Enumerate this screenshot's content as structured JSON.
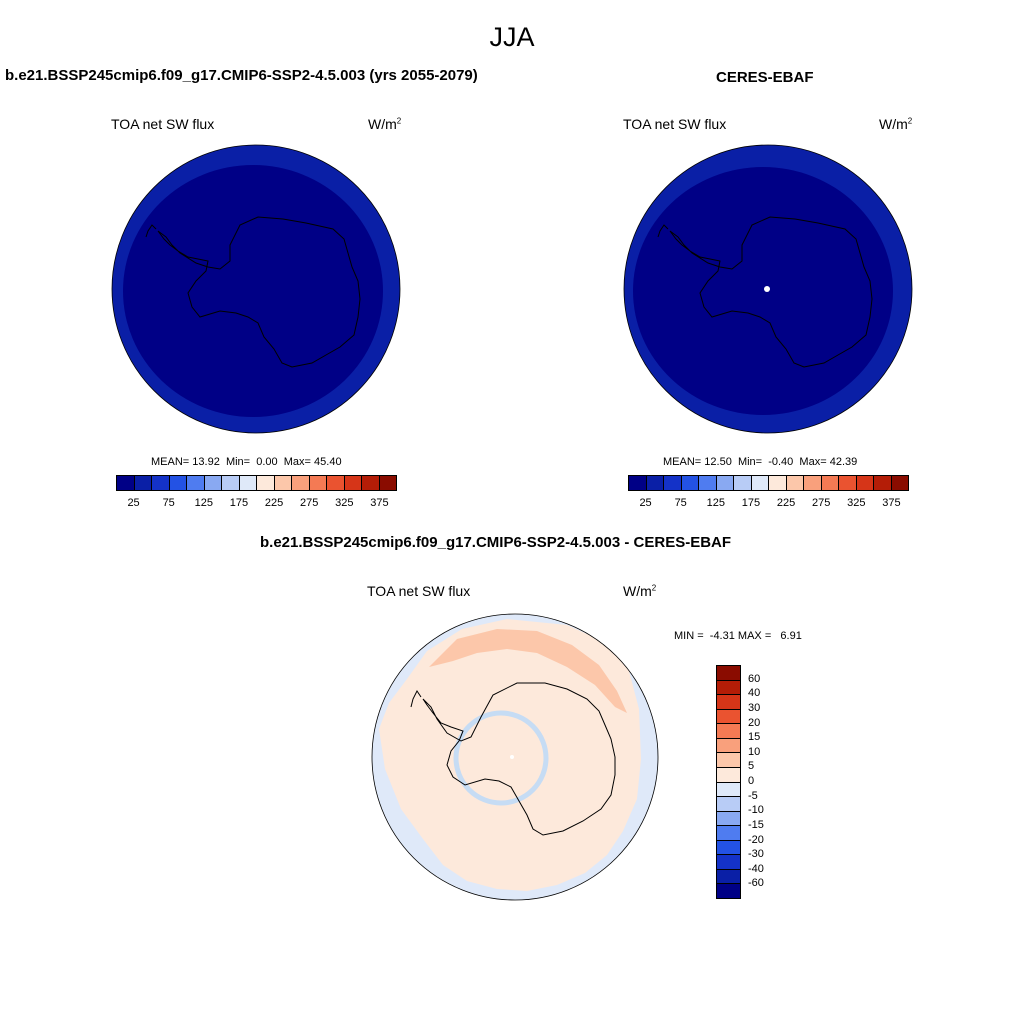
{
  "figure": {
    "season": "JJA",
    "left_panel": {
      "title": "b.e21.BSSP245cmip6.f09_g17.CMIP6-SSP2-4.5.003 (yrs 2055-2079)",
      "variable": "TOA net SW flux",
      "units_base": "W/m",
      "units_exp": "2",
      "stats": {
        "mean_label": "MEAN=",
        "mean": "13.92",
        "min_label": "Min=",
        "min": "0.00",
        "max_label": "Max=",
        "max": "45.40"
      }
    },
    "right_panel": {
      "title": "CERES-EBAF",
      "variable": "TOA net SW flux",
      "units_base": "W/m",
      "units_exp": "2",
      "stats": {
        "mean_label": "MEAN=",
        "mean": "12.50",
        "min_label": "Min=",
        "min": "-0.40",
        "max_label": "Max=",
        "max": "42.39"
      }
    },
    "diff_panel": {
      "title": "b.e21.BSSP245cmip6.f09_g17.CMIP6-SSP2-4.5.003 - CERES-EBAF",
      "variable": "TOA net SW flux",
      "units_base": "W/m",
      "units_exp": "2",
      "stats": {
        "min_label": "MIN =",
        "min": "-4.31",
        "max_label": "MAX =",
        "max": "6.91"
      }
    }
  },
  "colorbar_main": {
    "colors": [
      "#000086",
      "#0a1fa6",
      "#1432c8",
      "#2352e4",
      "#4f7cf0",
      "#89a9f2",
      "#b8ccf6",
      "#dfe9f9",
      "#fde9db",
      "#fcc7aa",
      "#f9a07c",
      "#f47a54",
      "#ea5330",
      "#d63518",
      "#b41d07",
      "#8a0c00"
    ],
    "ticks": [
      "25",
      "75",
      "125",
      "175",
      "225",
      "275",
      "325",
      "375"
    ]
  },
  "colorbar_diff": {
    "colors": [
      "#8a0c00",
      "#b41d07",
      "#d63518",
      "#ea5330",
      "#f47a54",
      "#f9a07c",
      "#fcc7aa",
      "#fde9db",
      "#dfe9f9",
      "#b8ccf6",
      "#89a9f2",
      "#4f7cf0",
      "#2352e4",
      "#1432c8",
      "#0a1fa6",
      "#000086"
    ],
    "ticks": [
      "60",
      "40",
      "30",
      "20",
      "15",
      "10",
      "5",
      "0",
      "-5",
      "-10",
      "-15",
      "-20",
      "-30",
      "-40",
      "-60"
    ]
  },
  "map_colors": {
    "outer_ring": "#0a1fa6",
    "inner_disc": "#000086",
    "diff_base": "#dfe9f9",
    "diff_positive": "#fde9db",
    "diff_band": "#fcc7aa",
    "diff_ring": "#c6dcf4",
    "coast": "#000000"
  }
}
